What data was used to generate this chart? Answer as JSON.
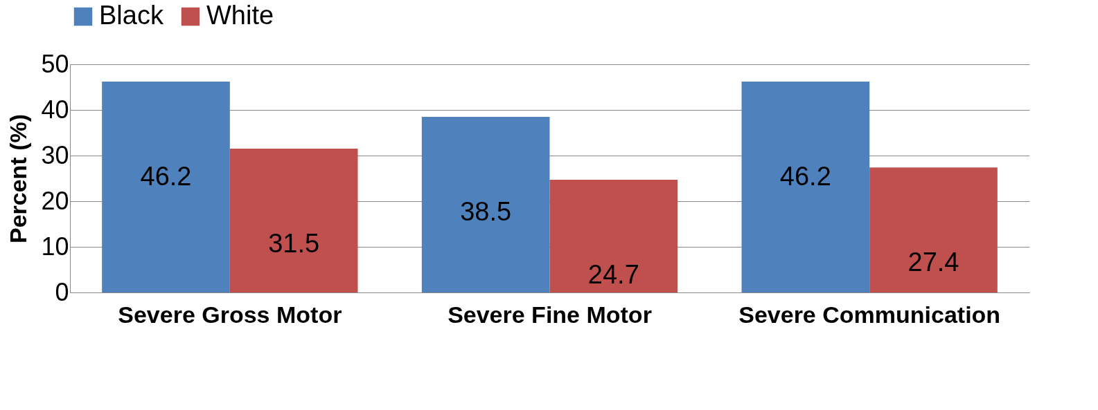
{
  "chart_data": {
    "type": "bar",
    "ylabel": "Percent (%)",
    "categories": [
      "Severe Gross Motor",
      "Severe Fine Motor",
      "Severe Communication"
    ],
    "series": [
      {
        "name": "Black",
        "color": "#4f81bd",
        "values": [
          46.2,
          38.5,
          46.2
        ]
      },
      {
        "name": "White",
        "color": "#c0504d",
        "values": [
          31.5,
          24.7,
          27.4
        ]
      }
    ],
    "ylim": [
      0,
      50
    ],
    "yticks": [
      0,
      10,
      20,
      30,
      40,
      50
    ],
    "grid": "y",
    "legend": "top",
    "data_labels": true
  }
}
